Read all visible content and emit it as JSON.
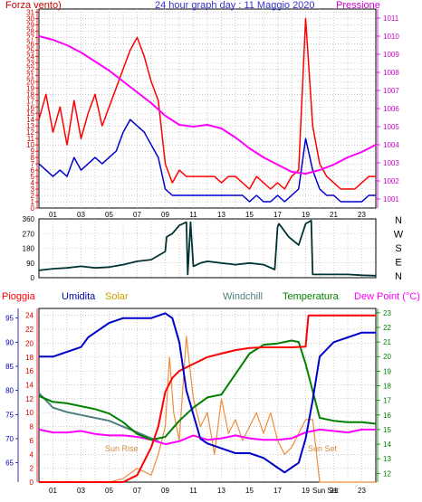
{
  "colors": {
    "red": "#ff0000",
    "blue": "#0000cc",
    "magenta": "#ff00ff",
    "darkred": "#cc0000",
    "tan": "#c8a000",
    "gray": "#4f7f7f",
    "green": "#008000",
    "orange": "#f08c3c",
    "darkblue": "#0000aa",
    "dirline": "#003333",
    "grid": "#aaaaaa"
  },
  "chart_data": [
    {
      "type": "line",
      "title": "24 hour graph day : 11 Maggio 2020",
      "left_label": "Forza vento)",
      "right_label": "Pressione",
      "x_ticks": [
        "01",
        "03",
        "05",
        "07",
        "09",
        "11",
        "13",
        "15",
        "17",
        "19",
        "21",
        "23"
      ],
      "x_range": [
        0,
        24
      ],
      "y_left_ticks": [
        "0",
        "1",
        "2",
        "3",
        "4",
        "5",
        "6",
        "7",
        "8",
        "9",
        "10",
        "11",
        "12",
        "13",
        "14",
        "15",
        "16",
        "17",
        "18",
        "19",
        "20",
        "21",
        "22",
        "23",
        "24",
        "25",
        "26",
        "27",
        "28",
        "29",
        "30",
        "31"
      ],
      "y_left_range": [
        0,
        31.5
      ],
      "y_right_ticks": [
        "1001",
        "1002",
        "1003",
        "1004",
        "1005",
        "1006",
        "1007",
        "1008",
        "1009",
        "1010",
        "1011"
      ],
      "y_right_range": [
        1000.5,
        1011.5
      ],
      "grid": true,
      "series": [
        {
          "name": "gust",
          "color": "red",
          "axis": "left",
          "x": [
            0,
            0.5,
            1,
            1.5,
            2,
            2.5,
            3,
            3.5,
            4,
            4.5,
            5,
            5.5,
            6,
            6.5,
            7,
            7.5,
            8,
            8.5,
            9,
            9.5,
            10,
            10.5,
            11,
            11.5,
            12,
            12.5,
            13,
            13.5,
            14,
            14.5,
            15,
            15.5,
            16,
            16.5,
            17,
            17.5,
            18,
            18.5,
            19,
            19.5,
            20,
            20.5,
            21,
            21.5,
            22,
            22.5,
            23,
            23.5,
            24
          ],
          "values": [
            14,
            18,
            12,
            16,
            10,
            17,
            11,
            15,
            18,
            13,
            16,
            19,
            22,
            25,
            27,
            24,
            20,
            17,
            7,
            4,
            6,
            5,
            5,
            5,
            5,
            5,
            4,
            5,
            5,
            4,
            3,
            5,
            4,
            3,
            4,
            3,
            5,
            6,
            30,
            13,
            7,
            5,
            4,
            3,
            3,
            3,
            4,
            5,
            5
          ]
        },
        {
          "name": "wind",
          "color": "blue",
          "axis": "left",
          "x": [
            0,
            0.5,
            1,
            1.5,
            2,
            2.5,
            3,
            3.5,
            4,
            4.5,
            5,
            5.5,
            6,
            6.5,
            7,
            7.5,
            8,
            8.5,
            9,
            9.5,
            10,
            10.5,
            11,
            11.5,
            12,
            12.5,
            13,
            13.5,
            14,
            14.5,
            15,
            15.5,
            16,
            16.5,
            17,
            17.5,
            18,
            18.5,
            19,
            19.5,
            20,
            20.5,
            21,
            21.5,
            22,
            22.5,
            23,
            23.5,
            24
          ],
          "values": [
            7,
            6,
            5,
            6,
            5,
            8,
            6,
            7,
            8,
            7,
            8,
            9,
            12,
            14,
            13,
            12,
            10,
            8,
            3,
            2,
            2,
            2,
            2,
            2,
            2,
            2,
            2,
            2,
            2,
            2,
            1,
            2,
            1,
            1,
            2,
            1,
            2,
            3,
            11,
            6,
            3,
            2,
            2,
            1,
            1,
            1,
            1,
            2,
            2
          ]
        },
        {
          "name": "Pressione",
          "color": "magenta",
          "axis": "right",
          "x": [
            0,
            1,
            2,
            3,
            4,
            5,
            6,
            7,
            8,
            9,
            10,
            11,
            12,
            13,
            14,
            15,
            16,
            17,
            18,
            19,
            20,
            21,
            22,
            23,
            24
          ],
          "values": [
            1010.0,
            1009.8,
            1009.5,
            1009.1,
            1008.6,
            1008.1,
            1007.5,
            1006.9,
            1006.3,
            1005.6,
            1005.1,
            1005.0,
            1005.1,
            1004.9,
            1004.4,
            1003.8,
            1003.3,
            1002.9,
            1002.5,
            1002.4,
            1002.6,
            1002.9,
            1003.3,
            1003.6,
            1004.0
          ]
        }
      ]
    },
    {
      "type": "line",
      "y_left_ticks": [
        "0",
        "90",
        "180",
        "270",
        "360"
      ],
      "y_left_range": [
        0,
        360
      ],
      "compass": [
        "N",
        "W",
        "S",
        "E",
        "N"
      ],
      "x_ticks": [
        "01",
        "03",
        "05",
        "07",
        "09",
        "11",
        "13",
        "15",
        "17",
        "19",
        "21",
        "23"
      ],
      "x_range": [
        0,
        24
      ],
      "series": [
        {
          "name": "direction",
          "color": "dirline",
          "x": [
            0,
            1,
            2,
            3,
            4,
            5,
            6,
            7,
            8,
            9,
            9.1,
            9.5,
            10,
            10.5,
            10.6,
            10.8,
            11,
            11.5,
            12,
            13,
            14,
            15,
            16,
            16.8,
            17,
            17.1,
            17.8,
            18.5,
            19,
            19.4,
            19.5,
            20,
            21,
            22,
            23,
            24
          ],
          "values": [
            45,
            55,
            60,
            70,
            60,
            65,
            80,
            100,
            110,
            160,
            250,
            270,
            320,
            340,
            20,
            340,
            70,
            90,
            100,
            90,
            80,
            90,
            80,
            50,
            310,
            330,
            250,
            200,
            330,
            350,
            20,
            20,
            20,
            20,
            15,
            12
          ]
        }
      ]
    },
    {
      "type": "line",
      "labels": {
        "pioggia": "Pioggia",
        "umidita": "Umidita",
        "solar": "Solar",
        "windchill": "Windchill",
        "temperatura": "Temperatura",
        "dewpoint": "Dew Point (°C)"
      },
      "annotations": {
        "sun_rise": "Sun Rise",
        "sun_set": "Sun Set",
        "sun_set_axis": "Sun Set"
      },
      "y_far_left_ticks": [
        "65",
        "70",
        "75",
        "80",
        "85",
        "90",
        "95"
      ],
      "y_far_left_range": [
        61,
        97
      ],
      "y_left_ticks": [
        "0",
        "2",
        "4",
        "6",
        "8",
        "10",
        "12",
        "14",
        "16",
        "18",
        "20",
        "22",
        "24"
      ],
      "y_left_range": [
        0,
        25
      ],
      "y_right_ticks": [
        "12",
        "13",
        "14",
        "15",
        "16",
        "17",
        "18",
        "19",
        "20",
        "21",
        "22",
        "23"
      ],
      "y_right_range": [
        11.4,
        23.3
      ],
      "x_ticks": [
        "01",
        "03",
        "05",
        "07",
        "09",
        "11",
        "13",
        "15",
        "17",
        "19",
        "21",
        "23"
      ],
      "x_range": [
        0,
        24
      ],
      "series": [
        {
          "name": "Pioggia",
          "color": "red",
          "axis": "left",
          "x": [
            0,
            4,
            6,
            7,
            8,
            8.5,
            9,
            9.5,
            10,
            11,
            12,
            13,
            14,
            15,
            16,
            17,
            18,
            19,
            19.2,
            20,
            21,
            22,
            23,
            24
          ],
          "values": [
            0,
            0,
            0,
            1,
            5,
            8,
            13,
            15,
            16,
            17,
            18,
            18.5,
            19,
            19.3,
            19.4,
            19.4,
            19.4,
            19.5,
            24,
            24,
            24,
            24,
            24,
            24
          ]
        },
        {
          "name": "Umidita",
          "color": "blue",
          "axis": "far_left",
          "x": [
            0,
            1,
            2,
            3,
            3.5,
            4,
            5,
            6,
            7,
            8,
            9,
            9.5,
            10,
            10.5,
            11,
            11.5,
            12,
            13,
            14,
            15,
            16,
            17,
            17.5,
            18,
            18.5,
            19,
            19.5,
            20,
            21,
            22,
            23,
            24
          ],
          "values": [
            87,
            87,
            88,
            89,
            91,
            92,
            94,
            95,
            95,
            95,
            96,
            95,
            90,
            80,
            75,
            70,
            69,
            68,
            67,
            67,
            66,
            64,
            63,
            64,
            65,
            70,
            78,
            87,
            90,
            91,
            92,
            92
          ]
        },
        {
          "name": "Windchill",
          "color": "gray",
          "axis": "right",
          "x": [
            0,
            1,
            2,
            3,
            4,
            5,
            6,
            7,
            8,
            8.5
          ],
          "values": [
            17.5,
            16.5,
            16.2,
            16.0,
            15.8,
            15.6,
            15.2,
            14.8,
            14.4,
            14.2
          ]
        },
        {
          "name": "Temperatura",
          "color": "green",
          "axis": "right",
          "x": [
            0,
            1,
            2,
            3,
            4,
            5,
            6,
            7,
            8,
            9,
            10,
            11,
            12,
            13,
            14,
            15,
            16,
            17,
            18,
            18.5,
            19,
            20,
            21,
            22,
            23,
            24
          ],
          "values": [
            17.3,
            16.9,
            16.8,
            16.6,
            16.4,
            16.1,
            15.5,
            14.7,
            14.3,
            14.5,
            15.6,
            16.5,
            17.2,
            17.4,
            18.8,
            20.2,
            20.8,
            20.9,
            21.1,
            21.0,
            19.5,
            15.8,
            15.6,
            15.5,
            15.5,
            15.4
          ]
        },
        {
          "name": "Dew Point (°C)",
          "color": "magenta",
          "axis": "right",
          "x": [
            0,
            1,
            2,
            3,
            4,
            5,
            6,
            7,
            8,
            9,
            10,
            11,
            12,
            13,
            14,
            15,
            16,
            17,
            18,
            19,
            20,
            21,
            22,
            23,
            24
          ],
          "values": [
            15.0,
            14.8,
            14.8,
            14.9,
            14.7,
            14.6,
            14.6,
            14.5,
            14.3,
            14.0,
            14.2,
            14.6,
            14.3,
            14.4,
            14.6,
            14.4,
            14.3,
            14.3,
            14.4,
            14.8,
            15.0,
            14.9,
            14.8,
            15.0,
            15.0
          ]
        },
        {
          "name": "Solar",
          "color": "orange",
          "axis": "left",
          "x": [
            5,
            6,
            7,
            8,
            8.5,
            9,
            9.3,
            9.6,
            10,
            10.5,
            11,
            11.5,
            12,
            12.5,
            13,
            13.5,
            14,
            14.5,
            15,
            15.5,
            16,
            16.5,
            17,
            17.5,
            18,
            18.5,
            19,
            19.5,
            20,
            21,
            24
          ],
          "values": [
            0,
            0.5,
            2,
            1,
            4,
            8,
            18,
            10,
            6,
            21,
            12,
            8,
            10,
            4,
            12,
            7,
            9,
            6,
            8,
            10,
            7,
            10,
            6,
            4,
            5,
            7,
            9,
            9,
            0,
            0,
            0
          ]
        }
      ]
    }
  ]
}
